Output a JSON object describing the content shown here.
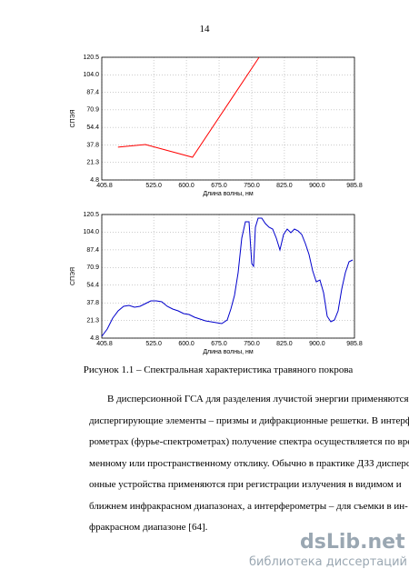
{
  "page_number": "14",
  "chart_data": [
    {
      "type": "line",
      "xlabel": "Длина волны, нм",
      "ylabel": "СПЭЯ",
      "color": "#ff0000",
      "grid": true,
      "x": [
        443,
        506,
        614,
        767
      ],
      "values": [
        35.7,
        38.2,
        26.2,
        120.5
      ],
      "xlim": [
        405.8,
        985.8
      ],
      "ylim": [
        4.8,
        120.5
      ],
      "xticks": [
        405.8,
        {
          "value": 525,
          "label": "525.0"
        },
        {
          "value": 600,
          "label": "600.0"
        },
        {
          "value": 675,
          "label": "675.0"
        },
        {
          "value": 750,
          "label": "750.0"
        },
        {
          "value": 825,
          "label": "825.0"
        },
        {
          "value": 900,
          "label": "900.0"
        },
        985.8
      ],
      "yticks": [
        4.8,
        21.3,
        37.8,
        54.4,
        70.9,
        87.4,
        {
          "value": 104,
          "label": "104.0"
        },
        120.5
      ]
    },
    {
      "type": "line",
      "xlabel": "Длина волны, нм",
      "ylabel": "СПЭЯ",
      "color": "#0000cc",
      "grid": true,
      "x": [
        405.8,
        418.3,
        430.8,
        443.4,
        455.9,
        468.4,
        480.9,
        493.4,
        505.9,
        518.5,
        531.0,
        543.5,
        556.0,
        568.5,
        581.0,
        593.6,
        606.1,
        618.6,
        631.1,
        643.6,
        656.2,
        668.7,
        681.2,
        693.7,
        702.1,
        710.4,
        718.7,
        727.1,
        735.4,
        743.8,
        750.0,
        754.2,
        758.4,
        764.6,
        773.0,
        781.3,
        789.7,
        798.0,
        806.4,
        814.7,
        823.1,
        831.4,
        839.8,
        848.1,
        856.4,
        864.8,
        873.1,
        881.5,
        889.8,
        898.2,
        906.5,
        914.9,
        923.2,
        931.6,
        939.9,
        948.2,
        956.6,
        964.9,
        973.3,
        981.6
      ],
      "values": [
        6.5,
        13.3,
        23.5,
        30.3,
        34.6,
        35.4,
        33.7,
        34.6,
        37.1,
        39.7,
        39.7,
        38.8,
        34.6,
        32.0,
        30.3,
        27.8,
        26.9,
        24.4,
        22.7,
        21.0,
        20.1,
        19.3,
        18.4,
        21.8,
        32.0,
        44.8,
        66.1,
        98.4,
        113.7,
        113.7,
        74.6,
        72.0,
        108.6,
        117.1,
        117.1,
        112.0,
        108.6,
        106.9,
        98.4,
        87.3,
        101.8,
        106.9,
        103.5,
        106.9,
        105.2,
        101.8,
        93.3,
        83.1,
        67.8,
        57.5,
        59.2,
        47.3,
        25.2,
        20.1,
        21.8,
        30.3,
        50.7,
        66.1,
        76.3,
        78.0
      ],
      "xlim": [
        405.8,
        985.8
      ],
      "ylim": [
        4.8,
        120.5
      ],
      "xticks": [
        405.8,
        {
          "value": 525,
          "label": "525.0"
        },
        {
          "value": 600,
          "label": "600.0"
        },
        {
          "value": 675,
          "label": "675.0"
        },
        {
          "value": 750,
          "label": "750.0"
        },
        {
          "value": 825,
          "label": "825.0"
        },
        {
          "value": 900,
          "label": "900.0"
        },
        985.8
      ],
      "yticks": [
        4.8,
        21.3,
        37.8,
        54.4,
        70.9,
        87.4,
        {
          "value": 104,
          "label": "104.0"
        },
        120.5
      ]
    }
  ],
  "caption": "Рисунок 1.1 – Спектральная характеристика травяного покрова",
  "paragraph": {
    "lines": [
      "В дисперсионной ГСА для разделения лучистой энергии применяются",
      "диспергирующие элементы – призмы и дифракционные решетки. В интерфе-",
      "рометрах (фурье-спектрометрах) получение спектра осуществляется по вре-",
      "менному или пространственному отклику. Обычно в практике ДЗЗ дисперси-",
      "онные устройства применяются при регистрации излучения в видимом и",
      "ближнем инфракрасном диапазонах, а интерферометры – для съемки в ин-",
      "фракрасном диапазоне [64]."
    ]
  },
  "watermark": {
    "logo": "dsLib.net",
    "subtitle": "библиотека диссертаций"
  }
}
